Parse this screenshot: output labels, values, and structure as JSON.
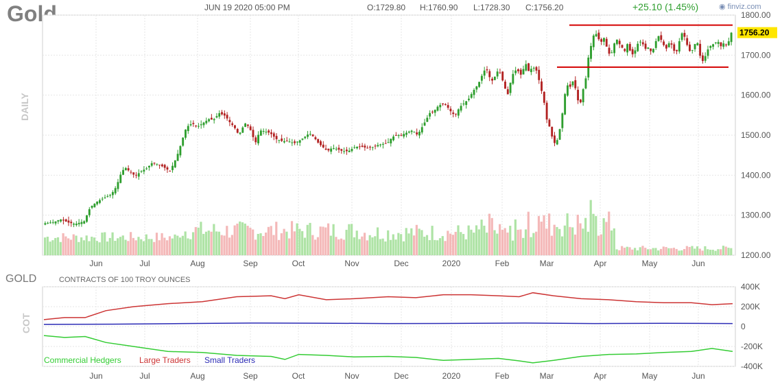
{
  "header": {
    "title": "Gold",
    "datetime": "JUN 19 2020 05:00 PM",
    "open": "O:1729.80",
    "high": "H:1760.90",
    "low": "L:1728.30",
    "close": "C:1756.20",
    "change": "+25.10 (1.45%)",
    "brand": "finviz.com",
    "brand_icon": "finviz-logo-icon",
    "side_label": "DAILY"
  },
  "chart_data": [
    {
      "type": "candlestick",
      "ylim": [
        1200,
        1800
      ],
      "y_ticks": [
        "1800.00",
        "1700.00",
        "1600.00",
        "1500.00",
        "1400.00",
        "1300.00",
        "1200.00"
      ],
      "y_tick_values": [
        1800,
        1700,
        1600,
        1500,
        1400,
        1300,
        1200
      ],
      "x_tick_labels": [
        "Jun",
        "Jul",
        "Aug",
        "Sep",
        "Oct",
        "Nov",
        "Dec",
        "2020",
        "Feb",
        "Mar",
        "Apr",
        "May",
        "Jun"
      ],
      "last_price": "1756.20",
      "last_price_value": 1756.2,
      "resistance": 1775,
      "support": 1670,
      "up_color": "#2e9e2e",
      "down_color": "#b22222",
      "close_path": [
        [
          0,
          1280
        ],
        [
          12,
          1283
        ],
        [
          20,
          1290
        ],
        [
          30,
          1282
        ],
        [
          40,
          1278
        ],
        [
          52,
          1285
        ],
        [
          60,
          1320
        ],
        [
          70,
          1335
        ],
        [
          80,
          1345
        ],
        [
          88,
          1352
        ],
        [
          95,
          1372
        ],
        [
          100,
          1400
        ],
        [
          106,
          1420
        ],
        [
          112,
          1410
        ],
        [
          120,
          1398
        ],
        [
          128,
          1410
        ],
        [
          136,
          1418
        ],
        [
          142,
          1430
        ],
        [
          150,
          1428
        ],
        [
          158,
          1420
        ],
        [
          166,
          1410
        ],
        [
          172,
          1432
        ],
        [
          178,
          1460
        ],
        [
          182,
          1485
        ],
        [
          188,
          1520
        ],
        [
          196,
          1530
        ],
        [
          202,
          1520
        ],
        [
          210,
          1530
        ],
        [
          218,
          1540
        ],
        [
          224,
          1538
        ],
        [
          232,
          1555
        ],
        [
          240,
          1548
        ],
        [
          246,
          1532
        ],
        [
          252,
          1520
        ],
        [
          258,
          1500
        ],
        [
          266,
          1530
        ],
        [
          272,
          1520
        ],
        [
          280,
          1480
        ],
        [
          286,
          1512
        ],
        [
          292,
          1510
        ],
        [
          300,
          1505
        ],
        [
          308,
          1490
        ],
        [
          316,
          1485
        ],
        [
          324,
          1485
        ],
        [
          332,
          1480
        ],
        [
          340,
          1488
        ],
        [
          346,
          1496
        ],
        [
          352,
          1505
        ],
        [
          358,
          1495
        ],
        [
          364,
          1480
        ],
        [
          370,
          1470
        ],
        [
          376,
          1460
        ],
        [
          382,
          1468
        ],
        [
          388,
          1466
        ],
        [
          396,
          1460
        ],
        [
          404,
          1460
        ],
        [
          412,
          1470
        ],
        [
          420,
          1472
        ],
        [
          428,
          1468
        ],
        [
          436,
          1470
        ],
        [
          444,
          1476
        ],
        [
          450,
          1478
        ],
        [
          456,
          1480
        ],
        [
          462,
          1495
        ],
        [
          468,
          1500
        ],
        [
          474,
          1500
        ],
        [
          480,
          1505
        ],
        [
          486,
          1510
        ],
        [
          490,
          1512
        ],
        [
          496,
          1500
        ],
        [
          502,
          1520
        ],
        [
          508,
          1540
        ],
        [
          512,
          1555
        ],
        [
          518,
          1560
        ],
        [
          522,
          1570
        ],
        [
          528,
          1578
        ],
        [
          534,
          1575
        ],
        [
          540,
          1560
        ],
        [
          546,
          1548
        ],
        [
          552,
          1570
        ],
        [
          558,
          1580
        ],
        [
          564,
          1590
        ],
        [
          570,
          1610
        ],
        [
          576,
          1625
        ],
        [
          580,
          1640
        ],
        [
          584,
          1660
        ],
        [
          588,
          1665
        ],
        [
          592,
          1645
        ],
        [
          596,
          1635
        ],
        [
          600,
          1650
        ],
        [
          604,
          1665
        ],
        [
          608,
          1645
        ],
        [
          612,
          1620
        ],
        [
          616,
          1600
        ],
        [
          622,
          1650
        ],
        [
          628,
          1665
        ],
        [
          634,
          1650
        ],
        [
          640,
          1680
        ],
        [
          644,
          1660
        ],
        [
          650,
          1670
        ],
        [
          655,
          1660
        ],
        [
          660,
          1620
        ],
        [
          664,
          1590
        ],
        [
          668,
          1540
        ],
        [
          672,
          1520
        ],
        [
          676,
          1490
        ],
        [
          680,
          1475
        ],
        [
          684,
          1500
        ],
        [
          688,
          1540
        ],
        [
          692,
          1600
        ],
        [
          696,
          1625
        ],
        [
          700,
          1620
        ],
        [
          704,
          1640
        ],
        [
          708,
          1600
        ],
        [
          712,
          1570
        ],
        [
          716,
          1610
        ],
        [
          720,
          1640
        ],
        [
          724,
          1700
        ],
        [
          728,
          1730
        ],
        [
          732,
          1760
        ],
        [
          736,
          1745
        ],
        [
          740,
          1730
        ],
        [
          744,
          1745
        ],
        [
          748,
          1720
        ],
        [
          752,
          1700
        ],
        [
          756,
          1710
        ],
        [
          760,
          1745
        ],
        [
          764,
          1730
        ],
        [
          768,
          1720
        ],
        [
          772,
          1710
        ],
        [
          776,
          1730
        ],
        [
          780,
          1705
        ],
        [
          784,
          1700
        ],
        [
          788,
          1725
        ],
        [
          792,
          1735
        ],
        [
          796,
          1728
        ],
        [
          800,
          1715
        ],
        [
          804,
          1720
        ],
        [
          808,
          1705
        ],
        [
          812,
          1725
        ],
        [
          816,
          1750
        ],
        [
          820,
          1740
        ],
        [
          824,
          1725
        ],
        [
          828,
          1715
        ],
        [
          832,
          1735
        ],
        [
          836,
          1720
        ],
        [
          840,
          1700
        ],
        [
          844,
          1730
        ],
        [
          848,
          1755
        ],
        [
          852,
          1745
        ],
        [
          856,
          1720
        ],
        [
          860,
          1705
        ],
        [
          864,
          1720
        ],
        [
          868,
          1740
        ],
        [
          872,
          1700
        ],
        [
          876,
          1685
        ],
        [
          880,
          1700
        ],
        [
          884,
          1720
        ],
        [
          888,
          1725
        ],
        [
          892,
          1730
        ],
        [
          896,
          1735
        ],
        [
          900,
          1722
        ],
        [
          904,
          1730
        ],
        [
          908,
          1725
        ],
        [
          912,
          1740
        ],
        [
          914,
          1756
        ]
      ]
    },
    {
      "type": "line",
      "title": "GOLD",
      "subtitle": "CONTRACTS OF 100 TROY OUNCES",
      "side_label": "COT",
      "ylim": [
        -400000,
        400000
      ],
      "y_ticks": [
        "400K",
        "200K",
        "0",
        "-200K",
        "-400K"
      ],
      "y_tick_values": [
        400000,
        200000,
        0,
        -200000,
        -400000
      ],
      "x_tick_labels": [
        "Jun",
        "Jul",
        "Aug",
        "Sep",
        "Oct",
        "Nov",
        "Dec",
        "2020",
        "Feb",
        "Mar",
        "Apr",
        "May",
        "Jun"
      ],
      "series": [
        {
          "name": "Commercial Hedgers",
          "color": "#33cc33",
          "path": [
            [
              0,
              -90000
            ],
            [
              30,
              -110000
            ],
            [
              60,
              -100000
            ],
            [
              90,
              -160000
            ],
            [
              130,
              -200000
            ],
            [
              180,
              -250000
            ],
            [
              230,
              -260000
            ],
            [
              280,
              -290000
            ],
            [
              330,
              -300000
            ],
            [
              350,
              -330000
            ],
            [
              370,
              -280000
            ],
            [
              410,
              -290000
            ],
            [
              450,
              -305000
            ],
            [
              500,
              -300000
            ],
            [
              540,
              -310000
            ],
            [
              580,
              -340000
            ],
            [
              620,
              -330000
            ],
            [
              660,
              -320000
            ],
            [
              690,
              -345000
            ],
            [
              710,
              -365000
            ],
            [
              740,
              -340000
            ],
            [
              780,
              -300000
            ],
            [
              820,
              -280000
            ],
            [
              860,
              -275000
            ],
            [
              900,
              -260000
            ],
            [
              940,
              -250000
            ],
            [
              970,
              -220000
            ],
            [
              1000,
              -250000
            ]
          ]
        },
        {
          "name": "Large Traders",
          "color": "#cc3333",
          "path": [
            [
              0,
              70000
            ],
            [
              30,
              90000
            ],
            [
              60,
              90000
            ],
            [
              90,
              160000
            ],
            [
              130,
              200000
            ],
            [
              180,
              230000
            ],
            [
              230,
              250000
            ],
            [
              280,
              300000
            ],
            [
              330,
              310000
            ],
            [
              350,
              280000
            ],
            [
              370,
              320000
            ],
            [
              410,
              270000
            ],
            [
              450,
              280000
            ],
            [
              500,
              300000
            ],
            [
              540,
              290000
            ],
            [
              580,
              320000
            ],
            [
              620,
              320000
            ],
            [
              660,
              310000
            ],
            [
              690,
              300000
            ],
            [
              710,
              340000
            ],
            [
              740,
              310000
            ],
            [
              780,
              280000
            ],
            [
              820,
              270000
            ],
            [
              860,
              250000
            ],
            [
              900,
              240000
            ],
            [
              940,
              240000
            ],
            [
              970,
              220000
            ],
            [
              1000,
              230000
            ]
          ]
        },
        {
          "name": "Small Traders",
          "color": "#2b2bb5",
          "path": [
            [
              0,
              22000
            ],
            [
              100,
              24000
            ],
            [
              200,
              30000
            ],
            [
              300,
              35000
            ],
            [
              400,
              34000
            ],
            [
              500,
              30000
            ],
            [
              600,
              32000
            ],
            [
              700,
              35000
            ],
            [
              800,
              30000
            ],
            [
              900,
              33000
            ],
            [
              1000,
              30000
            ]
          ]
        }
      ]
    }
  ]
}
